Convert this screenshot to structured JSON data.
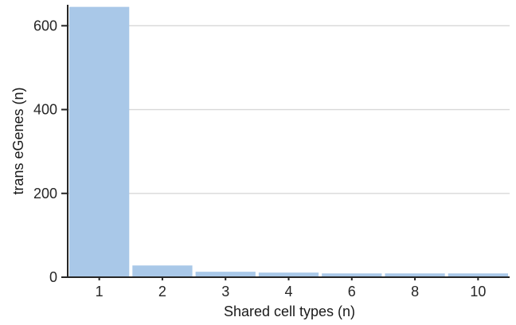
{
  "chart_data": {
    "type": "bar",
    "categories": [
      "1",
      "2",
      "3",
      "4",
      "6",
      "8",
      "10"
    ],
    "values": [
      645,
      28,
      13,
      11,
      9,
      9,
      9
    ],
    "title": "",
    "xlabel": "Shared cell types (n)",
    "ylabel": "trans eGenes (n)",
    "ylim": [
      0,
      650
    ],
    "yticks": [
      0,
      200,
      400,
      600
    ],
    "grid": true,
    "legend": "none",
    "bar_color": "#a9c8e8",
    "grid_color": "#d8d8d8",
    "axis_color": "#262626",
    "text_color": "#262626"
  }
}
